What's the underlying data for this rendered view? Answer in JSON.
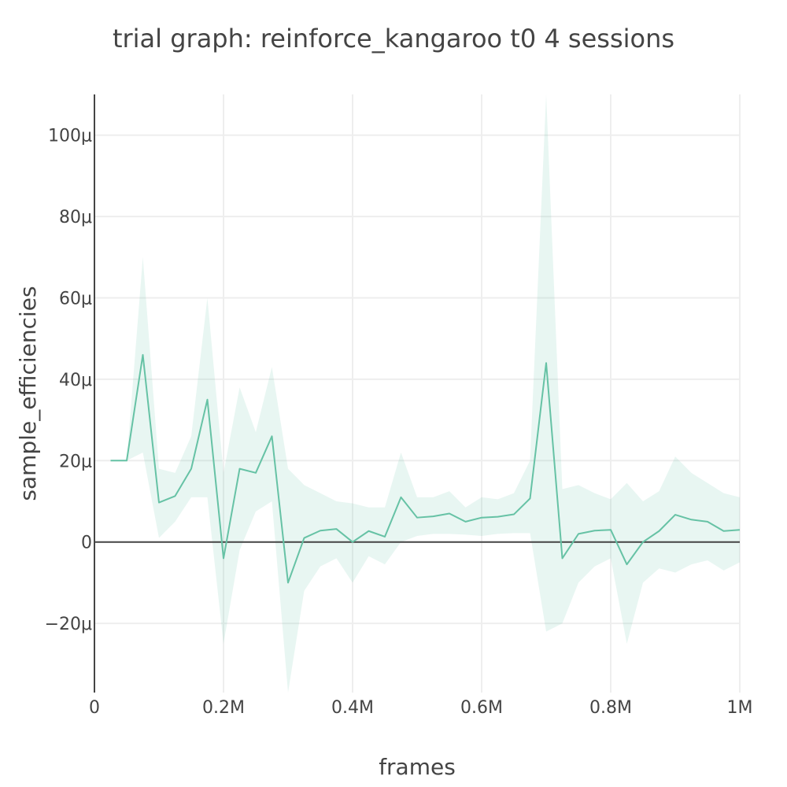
{
  "chart_data": {
    "type": "line",
    "title": "trial graph: reinforce_kangaroo t0 4 sessions",
    "xlabel": "frames",
    "ylabel": "sample_efficiencies",
    "xlim": [
      0,
      1000000
    ],
    "ylim": [
      -3.7e-05,
      0.00011
    ],
    "grid": true,
    "x_ticks": [
      {
        "value": 0,
        "label": "0"
      },
      {
        "value": 200000,
        "label": "0.2M"
      },
      {
        "value": 400000,
        "label": "0.4M"
      },
      {
        "value": 600000,
        "label": "0.6M"
      },
      {
        "value": 800000,
        "label": "0.8M"
      },
      {
        "value": 1000000,
        "label": "1M"
      }
    ],
    "y_ticks": [
      {
        "value": -2e-05,
        "label": "−20μ"
      },
      {
        "value": 0,
        "label": "0"
      },
      {
        "value": 2e-05,
        "label": "20μ"
      },
      {
        "value": 4e-05,
        "label": "40μ"
      },
      {
        "value": 6e-05,
        "label": "60μ"
      },
      {
        "value": 8e-05,
        "label": "80μ"
      },
      {
        "value": 0.0001,
        "label": "100μ"
      }
    ],
    "colors": {
      "line": "#66c2a5",
      "band": "rgba(102,194,165,0.15)",
      "zeroline": "#444444",
      "grid": "#eeeeee"
    },
    "series": [
      {
        "x": [
          25000,
          50000,
          75000,
          100000,
          125000,
          150000,
          175000,
          200000,
          225000,
          250000,
          275000,
          300000,
          325000,
          350000,
          375000,
          400000,
          425000,
          450000,
          475000,
          500000,
          525000,
          550000,
          575000,
          600000,
          625000,
          650000,
          675000,
          700000,
          725000,
          750000,
          775000,
          800000,
          825000,
          850000,
          875000,
          900000,
          925000,
          950000,
          975000,
          1000000
        ],
        "y": [
          2e-05,
          2e-05,
          4.6e-05,
          9.7e-06,
          1.13e-05,
          1.8e-05,
          3.5e-05,
          -4e-06,
          1.8e-05,
          1.7e-05,
          2.6e-05,
          -1e-05,
          1e-06,
          2.8e-06,
          3.2e-06,
          0,
          2.7e-06,
          1.3e-06,
          1.1e-05,
          6e-06,
          6.3e-06,
          7e-06,
          5e-06,
          6e-06,
          6.2e-06,
          6.8e-06,
          1.07e-05,
          4.4e-05,
          -4e-06,
          2e-06,
          2.8e-06,
          3e-06,
          -5.5e-06,
          0,
          2.7e-06,
          6.7e-06,
          5.5e-06,
          5e-06,
          2.7e-06,
          3e-06
        ],
        "upper": [
          2e-05,
          2e-05,
          7e-05,
          1.8e-05,
          1.7e-05,
          2.6e-05,
          6e-05,
          1.7e-05,
          3.8e-05,
          2.7e-05,
          4.3e-05,
          1.8e-05,
          1.4e-05,
          1.2e-05,
          1e-05,
          9.5e-06,
          8.5e-06,
          8.5e-06,
          2.2e-05,
          1.1e-05,
          1.1e-05,
          1.25e-05,
          8.5e-06,
          1.1e-05,
          1.05e-05,
          1.2e-05,
          2e-05,
          0.00011,
          1.3e-05,
          1.4e-05,
          1.2e-05,
          1.05e-05,
          1.45e-05,
          1e-05,
          1.25e-05,
          2.1e-05,
          1.7e-05,
          1.45e-05,
          1.2e-05,
          1.1e-05
        ],
        "lower": [
          2e-05,
          2e-05,
          2.2e-05,
          1e-06,
          5e-06,
          1.1e-05,
          1.1e-05,
          -2.5e-05,
          -2e-06,
          7.5e-06,
          1e-05,
          -3.7e-05,
          -1.2e-05,
          -6e-06,
          -4e-06,
          -1e-05,
          -3.5e-06,
          -5.5e-06,
          0,
          1.5e-06,
          2e-06,
          2e-06,
          1.8e-06,
          1.5e-06,
          2e-06,
          2.2e-06,
          2.2e-06,
          -2.2e-05,
          -2e-05,
          -1e-05,
          -6e-06,
          -4e-06,
          -2.5e-05,
          -1e-05,
          -6.5e-06,
          -7.5e-06,
          -5.5e-06,
          -4.5e-06,
          -7e-06,
          -5e-06
        ]
      }
    ]
  }
}
